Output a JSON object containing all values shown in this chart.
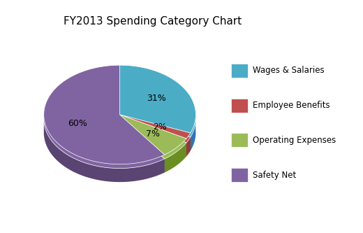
{
  "title": "FY2013 Spending Category Chart",
  "labels": [
    "Wages & Salaries",
    "Employee Benefits",
    "Operating Expenses",
    "Safety Net"
  ],
  "values": [
    31,
    2,
    7,
    60
  ],
  "colors": [
    "#4BACC6",
    "#C0504D",
    "#9BBB59",
    "#8064A2"
  ],
  "dark_colors": [
    "#2E75B6",
    "#923B39",
    "#6B8E23",
    "#5A4472"
  ],
  "pct_labels": [
    "31%",
    "2%",
    "7%",
    "60%"
  ],
  "title_fontsize": 11,
  "pct_fontsize": 9,
  "startangle": 90,
  "background_color": "#FFFFFF"
}
